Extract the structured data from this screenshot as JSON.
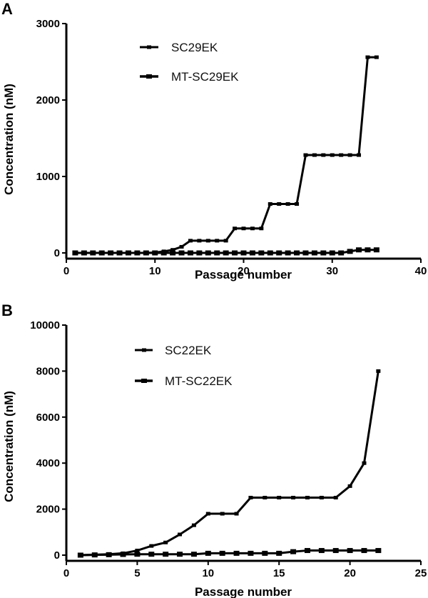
{
  "chart_data": [
    {
      "panel": "A",
      "type": "line",
      "title": "",
      "xlabel": "Passage number",
      "ylabel": "Concentration (nM)",
      "xlim": [
        0,
        40
      ],
      "ylim": [
        0,
        3000
      ],
      "xticks": [
        0,
        10,
        20,
        30,
        40
      ],
      "yticks": [
        0,
        1000,
        2000,
        3000
      ],
      "grid": false,
      "legend_position": "upper-left-center",
      "series": [
        {
          "name": "SC29EK",
          "x": [
            1,
            2,
            3,
            4,
            5,
            6,
            7,
            8,
            9,
            10,
            11,
            12,
            13,
            14,
            15,
            16,
            17,
            18,
            19,
            20,
            21,
            22,
            23,
            24,
            25,
            26,
            27,
            28,
            29,
            30,
            31,
            32,
            33,
            34,
            35
          ],
          "values": [
            0,
            0,
            0,
            0,
            0,
            0,
            0,
            0,
            0,
            5,
            20,
            40,
            80,
            160,
            160,
            160,
            160,
            160,
            320,
            320,
            320,
            320,
            640,
            640,
            640,
            640,
            1280,
            1280,
            1280,
            1280,
            1280,
            1280,
            1280,
            2560,
            2560
          ]
        },
        {
          "name": "MT-SC29EK",
          "x": [
            1,
            2,
            3,
            4,
            5,
            6,
            7,
            8,
            9,
            10,
            11,
            12,
            13,
            14,
            15,
            16,
            17,
            18,
            19,
            20,
            21,
            22,
            23,
            24,
            25,
            26,
            27,
            28,
            29,
            30,
            31,
            32,
            33,
            34,
            35
          ],
          "values": [
            0,
            0,
            0,
            0,
            0,
            0,
            0,
            0,
            0,
            0,
            0,
            0,
            0,
            0,
            0,
            0,
            0,
            0,
            0,
            0,
            0,
            0,
            0,
            0,
            0,
            0,
            0,
            0,
            0,
            0,
            0,
            20,
            40,
            40,
            40
          ]
        }
      ]
    },
    {
      "panel": "B",
      "type": "line",
      "title": "",
      "xlabel": "Passage number",
      "ylabel": "Concentration (nM)",
      "xlim": [
        0,
        25
      ],
      "ylim": [
        0,
        10000
      ],
      "xticks": [
        0,
        5,
        10,
        15,
        20,
        25
      ],
      "yticks": [
        0,
        2000,
        4000,
        6000,
        8000,
        10000
      ],
      "grid": false,
      "legend_position": "upper-left-center",
      "series": [
        {
          "name": "SC22EK",
          "x": [
            1,
            2,
            3,
            4,
            5,
            6,
            7,
            8,
            9,
            10,
            11,
            12,
            13,
            14,
            15,
            16,
            17,
            18,
            19,
            20,
            21,
            22
          ],
          "values": [
            0,
            20,
            40,
            80,
            200,
            400,
            550,
            900,
            1300,
            1800,
            1800,
            1800,
            2500,
            2500,
            2500,
            2500,
            2500,
            2500,
            2500,
            3000,
            4000,
            8000
          ]
        },
        {
          "name": "MT-SC22EK",
          "x": [
            1,
            2,
            3,
            4,
            5,
            6,
            7,
            8,
            9,
            10,
            11,
            12,
            13,
            14,
            15,
            16,
            17,
            18,
            19,
            20,
            21,
            22
          ],
          "values": [
            0,
            10,
            20,
            30,
            40,
            40,
            40,
            40,
            40,
            80,
            80,
            80,
            80,
            80,
            80,
            150,
            200,
            200,
            200,
            200,
            200,
            200
          ]
        }
      ]
    }
  ],
  "panels": {
    "a": {
      "label": "A",
      "legend": [
        "SC29EK",
        "MT-SC29EK"
      ],
      "xlabel": "Passage number",
      "ylabel": "Concentration (nM)"
    },
    "b": {
      "label": "B",
      "legend": [
        "SC22EK",
        "MT-SC22EK"
      ],
      "xlabel": "Passage number",
      "ylabel": "Concentration (nM)"
    }
  }
}
